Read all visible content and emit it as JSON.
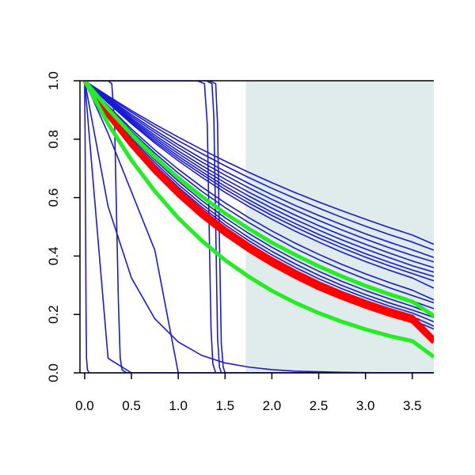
{
  "colors": {
    "background": "#ffffff",
    "shade": "#dfeceb",
    "blue": "#1a1ad6",
    "red": "#ff0000",
    "green": "#22ee22",
    "axis": "#000000"
  },
  "chart_data": {
    "type": "line",
    "title": "",
    "xlabel": "",
    "ylabel": "",
    "xlim": [
      -0.05,
      3.73
    ],
    "ylim": [
      0.0,
      1.0
    ],
    "grid": false,
    "legend": "none",
    "x_ticks": [
      0.0,
      0.5,
      1.0,
      1.5,
      2.0,
      2.5,
      3.0,
      3.5
    ],
    "x_tick_labels": [
      "0.0",
      "0.5",
      "1.0",
      "1.5",
      "2.0",
      "2.5",
      "3.0",
      "3.5"
    ],
    "y_ticks": [
      0.0,
      0.2,
      0.4,
      0.6,
      0.8,
      1.0
    ],
    "y_tick_labels": [
      "0.0",
      "0.2",
      "0.4",
      "0.6",
      "0.8",
      "1.0"
    ],
    "shaded_region": {
      "x_start": 1.72,
      "x_end": 3.73,
      "color": "#dfeceb"
    },
    "x": [
      0.0,
      0.25,
      0.5,
      0.75,
      1.0,
      1.25,
      1.5,
      1.75,
      2.0,
      2.25,
      2.5,
      2.75,
      3.0,
      3.25,
      3.5,
      3.73
    ],
    "series": [
      {
        "color": "#1a1ad6",
        "width": 1.6,
        "values": [
          1.0,
          0.948,
          0.898,
          0.851,
          0.807,
          0.765,
          0.725,
          0.687,
          0.651,
          0.617,
          0.585,
          0.555,
          0.526,
          0.498,
          0.472,
          0.44
        ]
      },
      {
        "color": "#1a1ad6",
        "width": 1.6,
        "values": [
          1.0,
          0.944,
          0.892,
          0.842,
          0.795,
          0.751,
          0.709,
          0.669,
          0.632,
          0.597,
          0.564,
          0.532,
          0.502,
          0.474,
          0.448,
          0.42
        ]
      },
      {
        "color": "#1a1ad6",
        "width": 1.6,
        "values": [
          1.0,
          0.94,
          0.884,
          0.831,
          0.781,
          0.734,
          0.69,
          0.649,
          0.61,
          0.573,
          0.539,
          0.507,
          0.476,
          0.448,
          0.421,
          0.395
        ]
      },
      {
        "color": "#1a1ad6",
        "width": 1.6,
        "values": [
          1.0,
          0.937,
          0.878,
          0.823,
          0.771,
          0.722,
          0.677,
          0.634,
          0.594,
          0.557,
          0.522,
          0.489,
          0.458,
          0.429,
          0.402,
          0.38
        ]
      },
      {
        "color": "#1a1ad6",
        "width": 1.6,
        "values": [
          1.0,
          0.934,
          0.872,
          0.814,
          0.76,
          0.71,
          0.663,
          0.619,
          0.578,
          0.54,
          0.504,
          0.471,
          0.44,
          0.411,
          0.383,
          0.36
        ]
      },
      {
        "color": "#1a1ad6",
        "width": 1.6,
        "values": [
          1.0,
          0.931,
          0.867,
          0.807,
          0.751,
          0.699,
          0.651,
          0.606,
          0.564,
          0.525,
          0.489,
          0.455,
          0.424,
          0.395,
          0.367,
          0.345
        ]
      },
      {
        "color": "#1a1ad6",
        "width": 1.6,
        "values": [
          1.0,
          0.929,
          0.862,
          0.8,
          0.742,
          0.689,
          0.639,
          0.593,
          0.55,
          0.511,
          0.474,
          0.44,
          0.408,
          0.379,
          0.352,
          0.33
        ]
      },
      {
        "color": "#1a1ad6",
        "width": 1.6,
        "values": [
          1.0,
          0.926,
          0.857,
          0.793,
          0.734,
          0.68,
          0.629,
          0.582,
          0.539,
          0.499,
          0.462,
          0.428,
          0.396,
          0.367,
          0.34,
          0.315
        ]
      },
      {
        "color": "#1a1ad6",
        "width": 1.6,
        "values": [
          1.0,
          0.924,
          0.853,
          0.787,
          0.726,
          0.67,
          0.618,
          0.57,
          0.526,
          0.485,
          0.448,
          0.413,
          0.381,
          0.352,
          0.325,
          0.29
        ]
      },
      {
        "color": "#1a1ad6",
        "width": 1.6,
        "values": [
          1.0,
          0.914,
          0.835,
          0.763,
          0.697,
          0.637,
          0.582,
          0.532,
          0.486,
          0.444,
          0.406,
          0.371,
          0.339,
          0.31,
          0.283,
          0.25
        ]
      },
      {
        "color": "#1a1ad6",
        "width": 1.6,
        "values": [
          1.0,
          0.91,
          0.827,
          0.752,
          0.684,
          0.622,
          0.566,
          0.515,
          0.469,
          0.426,
          0.388,
          0.353,
          0.321,
          0.292,
          0.265,
          0.24
        ]
      },
      {
        "color": "#1a1ad6",
        "width": 1.6,
        "values": [
          1.0,
          0.905,
          0.818,
          0.74,
          0.67,
          0.606,
          0.548,
          0.496,
          0.449,
          0.406,
          0.367,
          0.332,
          0.301,
          0.272,
          0.246,
          0.22
        ]
      },
      {
        "color": "#1a1ad6",
        "width": 1.6,
        "values": [
          1.0,
          0.9,
          0.81,
          0.729,
          0.656,
          0.59,
          0.531,
          0.478,
          0.43,
          0.387,
          0.348,
          0.313,
          0.282,
          0.254,
          0.228,
          0.2
        ]
      },
      {
        "color": "#1a1ad6",
        "width": 1.6,
        "values": [
          1.0,
          0.896,
          0.803,
          0.72,
          0.645,
          0.578,
          0.518,
          0.464,
          0.416,
          0.373,
          0.334,
          0.299,
          0.268,
          0.24,
          0.215,
          0.19
        ]
      },
      {
        "color": "#1a1ad6",
        "width": 1.6,
        "values": [
          1.0,
          0.893,
          0.797,
          0.712,
          0.636,
          0.568,
          0.507,
          0.453,
          0.404,
          0.361,
          0.322,
          0.288,
          0.257,
          0.229,
          0.205,
          0.175
        ]
      },
      {
        "color": "#1a1ad6",
        "width": 1.6,
        "values": [
          1.0,
          0.889,
          0.791,
          0.703,
          0.625,
          0.556,
          0.494,
          0.44,
          0.391,
          0.348,
          0.309,
          0.275,
          0.244,
          0.217,
          0.193,
          0.16
        ]
      },
      {
        "color": "#1a1ad6",
        "width": 1.6,
        "values": [
          1.0,
          0.885,
          0.784,
          0.694,
          0.614,
          0.544,
          0.481,
          0.426,
          0.377,
          0.334,
          0.296,
          0.262,
          0.232,
          0.205,
          0.181,
          0.15
        ]
      },
      {
        "color": "#1a1ad6",
        "width": 1.6,
        "values": [
          1.0,
          0.57,
          0.325,
          0.185,
          0.106,
          0.06,
          0.034,
          0.02,
          0.011,
          0.006,
          0.004,
          0.002,
          0.001,
          0.0,
          0.0,
          0.0
        ]
      },
      {
        "color": "#1a1ad6",
        "width": 1.6,
        "values": [
          1.0,
          0.82,
          0.62,
          0.42,
          0.0,
          0.0,
          0.0,
          0.0,
          0.0,
          0.0,
          0.0,
          0.0,
          0.0,
          0.0,
          0.0,
          0.0
        ]
      },
      {
        "color": "#1a1ad6",
        "width": 1.6,
        "values": [
          1.0,
          0.05,
          0.0,
          0.0,
          0.0,
          0.0,
          0.0,
          0.0,
          0.0,
          0.0,
          0.0,
          0.0,
          0.0,
          0.0,
          0.0,
          0.0
        ]
      },
      {
        "color": "#1a1ad6",
        "width": 1.6,
        "x": [
          0.0,
          0.005,
          0.01,
          0.015,
          0.02,
          0.03,
          0.05,
          0.1,
          3.73
        ],
        "values": [
          1.0,
          0.8,
          0.5,
          0.2,
          0.05,
          0.01,
          0.0,
          0.0,
          0.0
        ]
      },
      {
        "color": "#1a1ad6",
        "width": 1.6,
        "x": [
          0.0,
          0.25,
          0.29,
          0.32,
          0.34,
          0.36,
          0.38,
          0.4,
          0.45,
          3.73
        ],
        "values": [
          1.0,
          1.0,
          0.99,
          0.85,
          0.55,
          0.25,
          0.05,
          0.01,
          0.0,
          0.0
        ]
      },
      {
        "color": "#1a1ad6",
        "width": 1.6,
        "x": [
          0.0,
          1.2,
          1.28,
          1.31,
          1.33,
          1.35,
          1.37,
          1.4,
          1.45,
          3.73
        ],
        "values": [
          1.0,
          1.0,
          0.99,
          0.85,
          0.5,
          0.15,
          0.03,
          0.0,
          0.0,
          0.0
        ]
      },
      {
        "color": "#1a1ad6",
        "width": 1.6,
        "x": [
          0.0,
          1.3,
          1.36,
          1.38,
          1.4,
          1.42,
          1.44,
          1.46,
          1.5,
          3.73
        ],
        "values": [
          1.0,
          1.0,
          0.99,
          0.88,
          0.5,
          0.12,
          0.02,
          0.0,
          0.0,
          0.0
        ]
      },
      {
        "color": "#1a1ad6",
        "width": 1.6,
        "x": [
          0.0,
          1.33,
          1.4,
          1.42,
          1.44,
          1.46,
          1.48,
          1.5,
          1.55,
          3.73
        ],
        "values": [
          1.0,
          1.0,
          0.99,
          0.85,
          0.45,
          0.1,
          0.02,
          0.0,
          0.0,
          0.0
        ]
      },
      {
        "color": "#ff0000",
        "width": 6,
        "values": [
          1.0,
          0.888,
          0.789,
          0.701,
          0.623,
          0.554,
          0.492,
          0.437,
          0.388,
          0.345,
          0.306,
          0.272,
          0.242,
          0.215,
          0.191,
          0.115
        ]
      },
      {
        "color": "#ff0000",
        "width": 6,
        "values": [
          1.0,
          0.882,
          0.78,
          0.69,
          0.61,
          0.539,
          0.477,
          0.422,
          0.373,
          0.33,
          0.291,
          0.258,
          0.228,
          0.201,
          0.178,
          0.105
        ]
      },
      {
        "color": "#22ee22",
        "width": 5,
        "values": [
          1.0,
          0.904,
          0.817,
          0.739,
          0.668,
          0.604,
          0.546,
          0.494,
          0.446,
          0.404,
          0.365,
          0.33,
          0.298,
          0.27,
          0.244,
          0.195
        ]
      },
      {
        "color": "#22ee22",
        "width": 5,
        "values": [
          1.0,
          0.853,
          0.728,
          0.622,
          0.53,
          0.453,
          0.386,
          0.33,
          0.281,
          0.24,
          0.205,
          0.175,
          0.149,
          0.127,
          0.109,
          0.055
        ]
      }
    ]
  }
}
